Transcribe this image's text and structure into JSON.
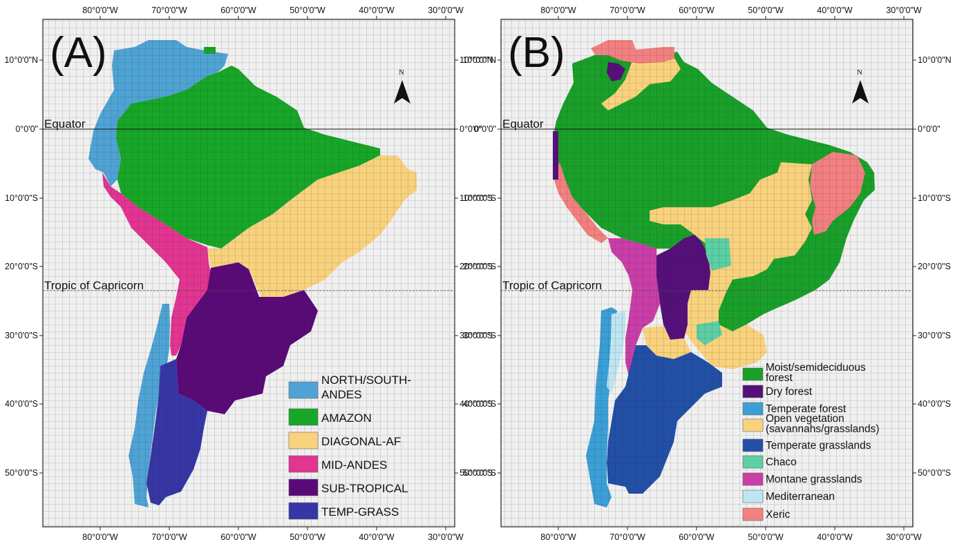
{
  "axes": {
    "lon_ticks": [
      "80°0'0\"W",
      "70°0'0\"W",
      "60°0'0\"W",
      "50°0'0\"W",
      "40°0'0\"W",
      "30°0'0\"W"
    ],
    "lat_ticks": [
      "10°0'0\"N",
      "0°0'0\"",
      "10°0'0\"S",
      "20°0'0\"S",
      "30°0'0\"S",
      "40°0'0\"S",
      "50°0'0\"S"
    ]
  },
  "reference_lines": {
    "equator": "Equator",
    "tropic": "Tropic of Capricorn"
  },
  "north_arrow": "N",
  "panel_a": {
    "label": "(A)",
    "legend": [
      {
        "label": "NORTH/SOUTH-\nANDES",
        "color": "#4fa3d4"
      },
      {
        "label": "AMAZON",
        "color": "#17a628"
      },
      {
        "label": "DIAGONAL-AF",
        "color": "#f9d27e"
      },
      {
        "label": "MID-ANDES",
        "color": "#e23591"
      },
      {
        "label": "SUB-TROPICAL",
        "color": "#5a0a77"
      },
      {
        "label": "TEMP-GRASS",
        "color": "#3636a6"
      }
    ]
  },
  "panel_b": {
    "label": "(B)",
    "legend": [
      {
        "label": "Moist/semideciduous\nforest",
        "color": "#1aa02a"
      },
      {
        "label": "Dry forest",
        "color": "#55107a"
      },
      {
        "label": "Temperate forest",
        "color": "#3b9fd5"
      },
      {
        "label": "Open vegetation\n(savannahs/grasslands)",
        "color": "#f9d27e"
      },
      {
        "label": "Temperate grasslands",
        "color": "#2250a6"
      },
      {
        "label": "Chaco",
        "color": "#5ccfa4"
      },
      {
        "label": "Montane grasslands",
        "color": "#c93ea7"
      },
      {
        "label": "Mediterranean",
        "color": "#bfe5f2"
      },
      {
        "label": "Xeric",
        "color": "#f28080"
      }
    ]
  }
}
